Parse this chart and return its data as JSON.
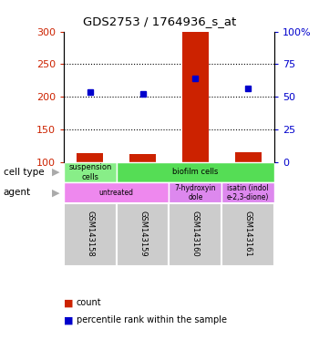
{
  "title": "GDS2753 / 1764936_s_at",
  "samples": [
    "GSM143158",
    "GSM143159",
    "GSM143160",
    "GSM143161"
  ],
  "bar_values": [
    113,
    112,
    300,
    115
  ],
  "bar_base": 100,
  "bar_color": "#cc2200",
  "dot_values": [
    207,
    204,
    228,
    213
  ],
  "dot_color": "#0000cc",
  "ylim_left": [
    100,
    300
  ],
  "yticks_left": [
    100,
    150,
    200,
    250,
    300
  ],
  "ylabel_right_labels": [
    "0",
    "25",
    "50",
    "75",
    "100%"
  ],
  "left_tick_color": "#cc2200",
  "right_tick_color": "#0000cc",
  "cell_type_row": [
    {
      "label": "suspension\ncells",
      "color": "#88ee88",
      "span": 1
    },
    {
      "label": "biofilm cells",
      "color": "#55dd55",
      "span": 3
    }
  ],
  "agent_row": [
    {
      "label": "untreated",
      "color": "#ee88ee",
      "span": 2
    },
    {
      "label": "7-hydroxyin\ndole",
      "color": "#dd88ee",
      "span": 1
    },
    {
      "label": "isatin (indol\ne-2,3-dione)",
      "color": "#dd88ee",
      "span": 1
    }
  ],
  "cell_type_label": "cell type",
  "agent_label": "agent",
  "legend_count_color": "#cc2200",
  "legend_pct_color": "#0000cc",
  "legend_count_text": "count",
  "legend_pct_text": "percentile rank within the sample",
  "sample_box_color": "#cccccc",
  "dotted_lines": [
    150,
    200,
    250
  ],
  "bar_width": 0.5
}
